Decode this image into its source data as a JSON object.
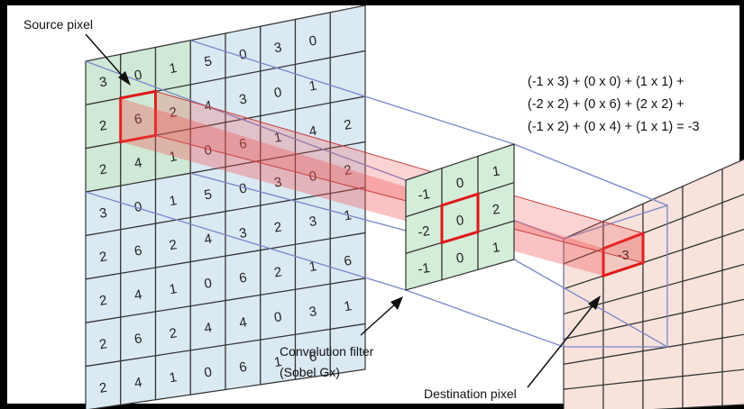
{
  "labels": {
    "source_pixel": "Source pixel",
    "filter_line1": "Convolution filter",
    "filter_line2": "(Sobel Gx)",
    "destination_pixel": "Destination pixel"
  },
  "equation": [
    "(-1 x 3) + (0 x 0) + (1 x 1) +",
    "(-2 x 2) + (0 x 6) + (2 x 2) +",
    "(-1 x 2) + (0 x 4) + (1 x 1)  = -3"
  ],
  "source_grid": [
    [
      "3",
      "0",
      "1",
      "5",
      "0",
      "3",
      "0"
    ],
    [
      "2",
      "6",
      "2",
      "4",
      "3",
      "0",
      "1"
    ],
    [
      "2",
      "4",
      "1",
      "0",
      "6",
      "1",
      "4",
      "2"
    ],
    [
      "3",
      "0",
      "1",
      "5",
      "0",
      "3",
      "0",
      "2"
    ],
    [
      "2",
      "6",
      "2",
      "4",
      "3",
      "2",
      "3",
      "1"
    ],
    [
      "2",
      "4",
      "1",
      "0",
      "6",
      "2",
      "1",
      "6"
    ],
    [
      "2",
      "6",
      "2",
      "4",
      "4",
      "0",
      "3",
      "1"
    ],
    [
      "2",
      "4",
      "1",
      "0",
      "6",
      "1",
      "6",
      ""
    ]
  ],
  "filter_grid": [
    [
      "-1",
      "0",
      "1"
    ],
    [
      "-2",
      "0",
      "2"
    ],
    [
      "-1",
      "0",
      "1"
    ]
  ],
  "destination_value": "-3",
  "colors": {
    "source_cells": "#dbe9f3",
    "window_cells": "#cfe9d6",
    "filter_cells": "#d4edd8",
    "dest_cells": "#f7e3dc",
    "highlight": "#e01818",
    "beam": "#f05050",
    "guide": "#7b86c8"
  }
}
